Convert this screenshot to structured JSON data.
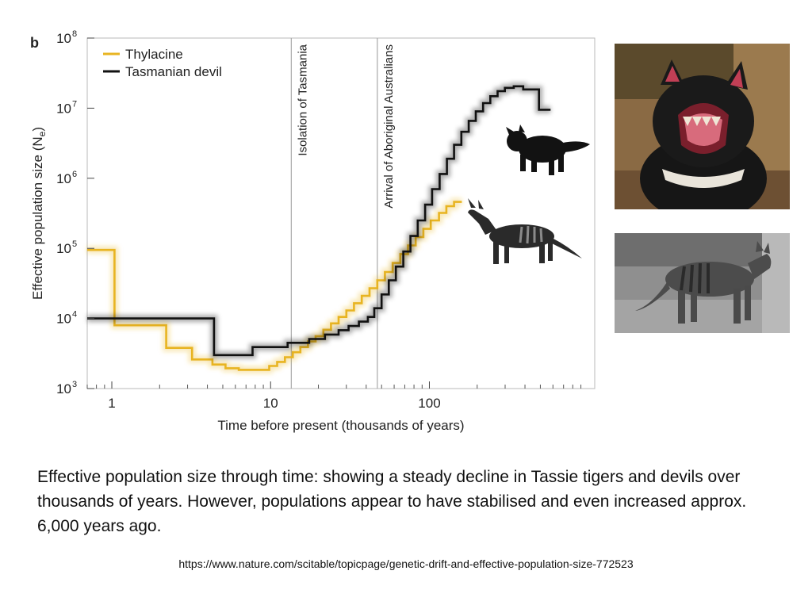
{
  "panel_label": "b",
  "chart_data": {
    "type": "line",
    "xscale": "log",
    "yscale": "log",
    "xlabel": "Time before present (thousands of years)",
    "ylabel": "Effective population size (N",
    "ylabel_sub": "e",
    "ylabel_close": ")",
    "xlim": [
      0.7,
      1100
    ],
    "ylim": [
      1000,
      100000000
    ],
    "x_ticks": [
      {
        "value": 1,
        "label": "1"
      },
      {
        "value": 10,
        "label": "10"
      },
      {
        "value": 100,
        "label": "100"
      }
    ],
    "y_ticks": [
      {
        "value": 1000,
        "base": "10",
        "exp": "3"
      },
      {
        "value": 10000,
        "base": "10",
        "exp": "4"
      },
      {
        "value": 100000,
        "base": "10",
        "exp": "5"
      },
      {
        "value": 1000000,
        "base": "10",
        "exp": "6"
      },
      {
        "value": 10000000,
        "base": "10",
        "exp": "7"
      },
      {
        "value": 100000000,
        "base": "10",
        "exp": "8"
      }
    ],
    "vlines": [
      {
        "x": 13.5,
        "label": "Isolation of Tasmania"
      },
      {
        "x": 47,
        "label": "Arrival of Aboriginal Australians"
      }
    ],
    "legend_position": "top-left",
    "grid": false,
    "series": [
      {
        "name": "Thylacine",
        "color": "#e8b421",
        "points": [
          [
            0.7,
            95000
          ],
          [
            1.04,
            95000
          ],
          [
            1.04,
            8000
          ],
          [
            2.2,
            8000
          ],
          [
            2.2,
            3800
          ],
          [
            3.2,
            3800
          ],
          [
            3.2,
            2600
          ],
          [
            4.3,
            2600
          ],
          [
            4.3,
            2200
          ],
          [
            5.2,
            2200
          ],
          [
            5.2,
            1950
          ],
          [
            6.3,
            1950
          ],
          [
            6.3,
            1850
          ],
          [
            9.8,
            1850
          ],
          [
            9.8,
            2100
          ],
          [
            11,
            2100
          ],
          [
            11,
            2400
          ],
          [
            12.3,
            2400
          ],
          [
            12.3,
            2800
          ],
          [
            13.8,
            2800
          ],
          [
            13.8,
            3300
          ],
          [
            15.4,
            3300
          ],
          [
            15.4,
            3900
          ],
          [
            17.2,
            3900
          ],
          [
            17.2,
            4700
          ],
          [
            19.2,
            4700
          ],
          [
            19.2,
            5600
          ],
          [
            21.5,
            5600
          ],
          [
            21.5,
            6900
          ],
          [
            24,
            6900
          ],
          [
            24,
            8500
          ],
          [
            26.8,
            8500
          ],
          [
            26.8,
            10500
          ],
          [
            30,
            10500
          ],
          [
            30,
            13000
          ],
          [
            33.5,
            13000
          ],
          [
            33.5,
            16500
          ],
          [
            37.5,
            16500
          ],
          [
            37.5,
            21000
          ],
          [
            42,
            21000
          ],
          [
            42,
            27000
          ],
          [
            47,
            27000
          ],
          [
            47,
            35000
          ],
          [
            52.5,
            35000
          ],
          [
            52.5,
            46000
          ],
          [
            58.7,
            46000
          ],
          [
            58.7,
            62000
          ],
          [
            65.6,
            62000
          ],
          [
            65.6,
            83000
          ],
          [
            73.3,
            83000
          ],
          [
            73.3,
            110000
          ],
          [
            82,
            110000
          ],
          [
            82,
            145000
          ],
          [
            91.6,
            145000
          ],
          [
            91.6,
            190000
          ],
          [
            102,
            190000
          ],
          [
            102,
            250000
          ],
          [
            115,
            250000
          ],
          [
            115,
            320000
          ],
          [
            128,
            320000
          ],
          [
            128,
            400000
          ],
          [
            143,
            400000
          ],
          [
            143,
            460000
          ],
          [
            160,
            460000
          ]
        ]
      },
      {
        "name": "Tasmanian devil",
        "color": "#111111",
        "points": [
          [
            0.7,
            10000
          ],
          [
            4.4,
            10000
          ],
          [
            4.4,
            3000
          ],
          [
            7.7,
            3000
          ],
          [
            7.7,
            3900
          ],
          [
            12.8,
            3900
          ],
          [
            12.8,
            4500
          ],
          [
            17.5,
            4500
          ],
          [
            17.5,
            5100
          ],
          [
            22,
            5100
          ],
          [
            22,
            5900
          ],
          [
            26.8,
            5900
          ],
          [
            26.8,
            6800
          ],
          [
            31,
            6800
          ],
          [
            31,
            7800
          ],
          [
            36,
            7800
          ],
          [
            36,
            9000
          ],
          [
            41,
            9000
          ],
          [
            41,
            10500
          ],
          [
            45,
            10500
          ],
          [
            45,
            14000
          ],
          [
            50,
            14000
          ],
          [
            50,
            22000
          ],
          [
            55.5,
            22000
          ],
          [
            55.5,
            35000
          ],
          [
            61.5,
            35000
          ],
          [
            61.5,
            55000
          ],
          [
            68.5,
            55000
          ],
          [
            68.5,
            90000
          ],
          [
            76,
            90000
          ],
          [
            76,
            150000
          ],
          [
            84.5,
            150000
          ],
          [
            84.5,
            250000
          ],
          [
            94,
            250000
          ],
          [
            94,
            420000
          ],
          [
            104,
            420000
          ],
          [
            104,
            700000
          ],
          [
            116,
            700000
          ],
          [
            116,
            1150000
          ],
          [
            129,
            1150000
          ],
          [
            129,
            1900000
          ],
          [
            143,
            1900000
          ],
          [
            143,
            3000000
          ],
          [
            159,
            3000000
          ],
          [
            159,
            4600000
          ],
          [
            177,
            4600000
          ],
          [
            177,
            6600000
          ],
          [
            196,
            6600000
          ],
          [
            196,
            9000000
          ],
          [
            218,
            9000000
          ],
          [
            218,
            11800000
          ],
          [
            242,
            11800000
          ],
          [
            242,
            14800000
          ],
          [
            269,
            14800000
          ],
          [
            269,
            17500000
          ],
          [
            299,
            17500000
          ],
          [
            299,
            19500000
          ],
          [
            340,
            19500000
          ],
          [
            340,
            20500000
          ],
          [
            390,
            20500000
          ],
          [
            390,
            18500000
          ],
          [
            490,
            18500000
          ],
          [
            490,
            9500000
          ],
          [
            580,
            9500000
          ]
        ]
      }
    ]
  },
  "caption": "Effective population size through time: showing a steady decline in Tassie tigers and devils over thousands of years. However, populations appear to have stabilised and even increased approx. 6,000 years ago.",
  "source_url": "https://www.nature.com/scitable/topicpage/genetic-drift-and-effective-population-size-772523"
}
